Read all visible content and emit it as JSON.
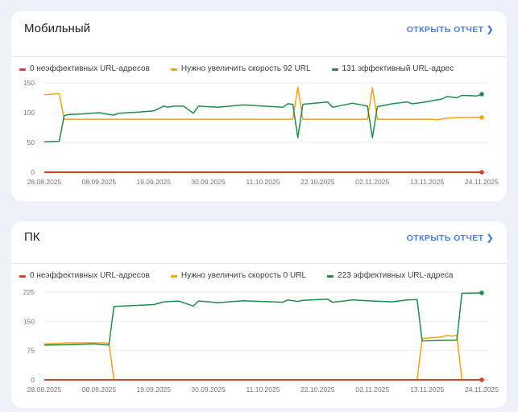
{
  "colors": {
    "poor": "#d0432f",
    "needs_improvement": "#f4a314",
    "good": "#1e8e4e",
    "link": "#4a7fe6"
  },
  "open_report_label": "ОТКРЫТЬ ОТЧЕТ",
  "chevron_icon": "chevron-right-icon",
  "chart_data": [
    {
      "type": "line",
      "title": "Мобильный",
      "ylim": [
        0,
        150
      ],
      "yticks": [
        "0",
        "50",
        "100",
        "150"
      ],
      "xticks": [
        "28.08.2025",
        "08.09.2025",
        "19.09.2025",
        "30.09.2025",
        "11.10.2025",
        "22.10.2025",
        "02.11.2025",
        "13.11.2025",
        "24.11.2025"
      ],
      "grid": true,
      "legend_position": "top-left",
      "series": [
        {
          "name": "0 неэффективных URL-адресов",
          "key": "poor",
          "points": [
            [
              "28.08.2025",
              0
            ],
            [
              "24.11.2025",
              0
            ]
          ]
        },
        {
          "name": "Нужно увеличить скорость 92 URL",
          "key": "needs_improvement",
          "points": [
            [
              "28.08.2025",
              130
            ],
            [
              "31.08.2025",
              132
            ],
            [
              "01.09.2025",
              89
            ],
            [
              "17.10.2025",
              89
            ],
            [
              "18.10.2025",
              143
            ],
            [
              "19.10.2025",
              89
            ],
            [
              "01.11.2025",
              89
            ],
            [
              "02.11.2025",
              142
            ],
            [
              "03.11.2025",
              89
            ],
            [
              "14.11.2025",
              89
            ],
            [
              "15.11.2025",
              88
            ],
            [
              "17.11.2025",
              91
            ],
            [
              "20.11.2025",
              92
            ],
            [
              "24.11.2025",
              92
            ]
          ]
        },
        {
          "name": "131 эффективный URL-адрес",
          "key": "good",
          "points": [
            [
              "28.08.2025",
              51
            ],
            [
              "31.08.2025",
              52
            ],
            [
              "01.09.2025",
              95
            ],
            [
              "02.09.2025",
              97
            ],
            [
              "05.09.2025",
              98
            ],
            [
              "08.09.2025",
              100
            ],
            [
              "10.09.2025",
              97
            ],
            [
              "11.09.2025",
              96
            ],
            [
              "12.09.2025",
              99
            ],
            [
              "16.09.2025",
              101
            ],
            [
              "19.09.2025",
              103
            ],
            [
              "21.09.2025",
              111
            ],
            [
              "22.09.2025",
              109
            ],
            [
              "23.09.2025",
              111
            ],
            [
              "25.09.2025",
              111
            ],
            [
              "27.09.2025",
              99
            ],
            [
              "28.09.2025",
              111
            ],
            [
              "02.10.2025",
              109
            ],
            [
              "07.10.2025",
              113
            ],
            [
              "15.10.2025",
              109
            ],
            [
              "16.10.2025",
              115
            ],
            [
              "17.10.2025",
              114
            ],
            [
              "18.10.2025",
              58
            ],
            [
              "19.10.2025",
              114
            ],
            [
              "24.10.2025",
              118
            ],
            [
              "25.10.2025",
              109
            ],
            [
              "29.10.2025",
              116
            ],
            [
              "01.11.2025",
              111
            ],
            [
              "02.11.2025",
              58
            ],
            [
              "03.11.2025",
              110
            ],
            [
              "06.11.2025",
              115
            ],
            [
              "09.11.2025",
              118
            ],
            [
              "10.11.2025",
              115
            ],
            [
              "12.11.2025",
              117
            ],
            [
              "16.11.2025",
              123
            ],
            [
              "17.11.2025",
              127
            ],
            [
              "19.11.2025",
              125
            ],
            [
              "20.11.2025",
              129
            ],
            [
              "23.11.2025",
              128
            ],
            [
              "24.11.2025",
              131
            ]
          ]
        }
      ]
    },
    {
      "type": "line",
      "title": "ПК",
      "ylim": [
        0,
        225
      ],
      "yticks": [
        "0",
        "75",
        "150",
        "225"
      ],
      "xticks": [
        "28.08.2025",
        "08.09.2025",
        "19.09.2025",
        "30.09.2025",
        "11.10.2025",
        "22.10.2025",
        "02.11.2025",
        "13.11.2025",
        "24.11.2025"
      ],
      "grid": true,
      "legend_position": "top-left",
      "series": [
        {
          "name": "0 неэффективных URL-адресов",
          "key": "poor",
          "points": [
            [
              "28.08.2025",
              0
            ],
            [
              "24.11.2025",
              0
            ]
          ]
        },
        {
          "name": "Нужно увеличить скорость 0 URL",
          "key": "needs_improvement",
          "points": [
            [
              "28.08.2025",
              92
            ],
            [
              "02.09.2025",
              95
            ],
            [
              "09.09.2025",
              95
            ],
            [
              "10.09.2025",
              94
            ],
            [
              "11.09.2025",
              0
            ],
            [
              "11.11.2025",
              0
            ],
            [
              "12.11.2025",
              106
            ],
            [
              "16.11.2025",
              110
            ],
            [
              "17.11.2025",
              114
            ],
            [
              "18.11.2025",
              112
            ],
            [
              "19.11.2025",
              114
            ],
            [
              "20.11.2025",
              0
            ],
            [
              "24.11.2025",
              0
            ]
          ]
        },
        {
          "name": "223 эффективных URL-адреса",
          "key": "good",
          "points": [
            [
              "28.08.2025",
              89
            ],
            [
              "02.09.2025",
              90
            ],
            [
              "07.09.2025",
              92
            ],
            [
              "10.09.2025",
              89
            ],
            [
              "11.09.2025",
              188
            ],
            [
              "19.09.2025",
              193
            ],
            [
              "21.09.2025",
              200
            ],
            [
              "24.09.2025",
              202
            ],
            [
              "27.09.2025",
              189
            ],
            [
              "28.09.2025",
              202
            ],
            [
              "02.10.2025",
              198
            ],
            [
              "07.10.2025",
              203
            ],
            [
              "15.10.2025",
              199
            ],
            [
              "16.10.2025",
              205
            ],
            [
              "18.10.2025",
              201
            ],
            [
              "19.10.2025",
              204
            ],
            [
              "24.10.2025",
              207
            ],
            [
              "25.10.2025",
              199
            ],
            [
              "29.10.2025",
              205
            ],
            [
              "01.11.2025",
              203
            ],
            [
              "06.11.2025",
              200
            ],
            [
              "09.11.2025",
              205
            ],
            [
              "11.11.2025",
              206
            ],
            [
              "12.11.2025",
              100
            ],
            [
              "16.11.2025",
              101
            ],
            [
              "19.11.2025",
              102
            ],
            [
              "20.11.2025",
              222
            ],
            [
              "24.11.2025",
              223
            ]
          ]
        }
      ]
    }
  ]
}
